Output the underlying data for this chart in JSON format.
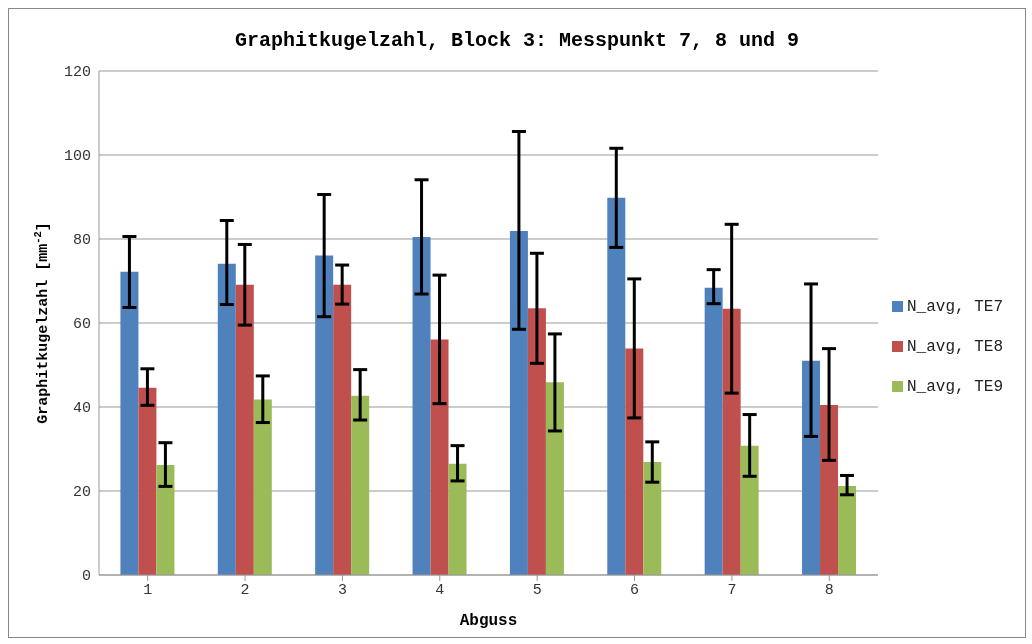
{
  "chart_data": {
    "type": "bar",
    "title": "Graphitkugelzahl, Block 3: Messpunkt 7, 8 und 9",
    "xlabel": "Abguss",
    "ylabel": "Graphitkugelzahl [mm$^{-2}$]",
    "categories": [
      "1",
      "2",
      "3",
      "4",
      "5",
      "6",
      "7",
      "8"
    ],
    "series": [
      {
        "name": "N_avg, TE7",
        "color": "#4f81bd",
        "values": [
          72.2,
          74.1,
          76.1,
          80.5,
          81.9,
          89.8,
          68.4,
          51.0
        ],
        "errors": [
          [
            63.7,
            80.6
          ],
          [
            64.4,
            84.4
          ],
          [
            61.5,
            90.6
          ],
          [
            66.9,
            94.1
          ],
          [
            58.5,
            105.6
          ],
          [
            78.0,
            101.6
          ],
          [
            64.6,
            72.7
          ],
          [
            33.0,
            69.3
          ]
        ]
      },
      {
        "name": "N_avg, TE8",
        "color": "#c0504d",
        "values": [
          44.6,
          69.1,
          69.1,
          56.1,
          63.5,
          53.9,
          63.4,
          40.5
        ],
        "errors": [
          [
            40.4,
            49.1
          ],
          [
            59.5,
            78.7
          ],
          [
            64.5,
            73.8
          ],
          [
            40.8,
            71.4
          ],
          [
            50.4,
            76.6
          ],
          [
            37.4,
            70.5
          ],
          [
            43.3,
            83.5
          ],
          [
            27.3,
            53.9
          ]
        ]
      },
      {
        "name": "N_avg, TE9",
        "color": "#9bbb59",
        "values": [
          26.2,
          41.8,
          42.7,
          26.5,
          45.9,
          26.9,
          30.8,
          21.2
        ],
        "errors": [
          [
            21.1,
            31.5
          ],
          [
            36.3,
            47.4
          ],
          [
            36.9,
            48.9
          ],
          [
            22.4,
            30.8
          ],
          [
            34.3,
            57.4
          ],
          [
            22.1,
            31.7
          ],
          [
            23.5,
            38.2
          ],
          [
            19.1,
            23.7
          ]
        ]
      }
    ],
    "ylim": [
      0,
      120
    ],
    "yticks": [
      0,
      20,
      40,
      60,
      80,
      100,
      120
    ],
    "grid": "y",
    "legend": "right"
  }
}
